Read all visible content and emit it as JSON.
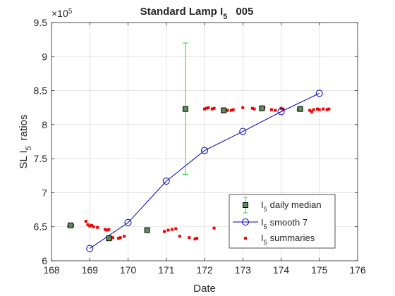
{
  "chart_data": {
    "type": "scatter",
    "title_main": "Standard Lamp I",
    "title_sub": "5",
    "title_suffix": "005",
    "xlabel": "Date",
    "ylabel_main": "SL I",
    "ylabel_sub": "5",
    "ylabel_suffix": "ratios",
    "y_exponent_base": "×10",
    "y_exponent_power": "5",
    "xlim": [
      168,
      176
    ],
    "ylim": [
      6.0,
      9.5
    ],
    "x_ticks": [
      168,
      169,
      170,
      171,
      172,
      173,
      174,
      175,
      176
    ],
    "y_ticks": [
      6,
      6.5,
      7,
      7.5,
      8,
      8.5,
      9,
      9.5
    ],
    "y_tick_labels": [
      "6",
      "6.5",
      "7",
      "7.5",
      "8",
      "8.5",
      "9",
      "9.5"
    ],
    "grid": true,
    "legend_position": "bottom-right",
    "series": [
      {
        "name": "daily median",
        "name_prefix": "I",
        "name_sub": "5",
        "style": "square-errorbar",
        "color": "#000000",
        "fill": "#5a8f5a",
        "errorbar_color": "#33cc33",
        "points": [
          {
            "x": 168.5,
            "y": 6.52,
            "err_low": 6.52,
            "err_high": 6.52
          },
          {
            "x": 169.5,
            "y": 6.33,
            "err_low": 6.33,
            "err_high": 6.33
          },
          {
            "x": 170.5,
            "y": 6.45,
            "err_low": 6.45,
            "err_high": 6.45
          },
          {
            "x": 171.5,
            "y": 8.23,
            "err_low": 7.27,
            "err_high": 9.2
          },
          {
            "x": 172.5,
            "y": 8.21,
            "err_low": 8.21,
            "err_high": 8.21
          },
          {
            "x": 173.5,
            "y": 8.24,
            "err_low": 8.24,
            "err_high": 8.24
          },
          {
            "x": 174.5,
            "y": 8.23,
            "err_low": 8.23,
            "err_high": 8.23
          }
        ]
      },
      {
        "name": "smooth 7",
        "name_prefix": "I",
        "name_sub": "5",
        "style": "line-circle",
        "color": "#0000aa",
        "x": [
          169,
          170,
          171,
          172,
          173,
          174,
          175
        ],
        "y": [
          6.18,
          6.56,
          7.17,
          7.62,
          7.9,
          8.19,
          8.46
        ]
      },
      {
        "name": "summaries",
        "name_prefix": "I",
        "name_sub": "5",
        "style": "dot",
        "color": "#ee0000",
        "x": [
          168.45,
          168.5,
          168.55,
          168.9,
          168.95,
          169.0,
          169.05,
          169.1,
          169.2,
          169.4,
          169.45,
          169.5,
          169.55,
          169.6,
          169.75,
          169.8,
          169.9,
          170.95,
          171.05,
          171.15,
          171.25,
          171.35,
          171.6,
          171.75,
          171.8,
          172.25,
          172.0,
          172.05,
          172.1,
          172.2,
          172.25,
          172.6,
          172.7,
          172.75,
          173.0,
          173.25,
          173.3,
          173.5,
          173.55,
          173.75,
          173.85,
          174.0,
          174.05,
          174.45,
          174.5,
          174.75,
          174.8,
          174.85,
          174.95,
          175.0,
          175.1,
          175.2,
          175.25
        ],
        "y": [
          6.51,
          6.52,
          6.52,
          6.58,
          6.53,
          6.51,
          6.52,
          6.5,
          6.49,
          6.46,
          6.45,
          6.46,
          6.33,
          6.34,
          6.33,
          6.34,
          6.36,
          6.43,
          6.45,
          6.46,
          6.47,
          6.36,
          6.34,
          6.32,
          6.33,
          6.48,
          8.23,
          8.24,
          8.25,
          8.23,
          8.24,
          8.21,
          8.21,
          8.22,
          8.25,
          8.24,
          8.23,
          8.24,
          8.25,
          8.22,
          8.21,
          8.24,
          8.23,
          8.22,
          8.23,
          8.21,
          8.19,
          8.22,
          8.23,
          8.22,
          8.23,
          8.22,
          8.23
        ]
      }
    ]
  }
}
